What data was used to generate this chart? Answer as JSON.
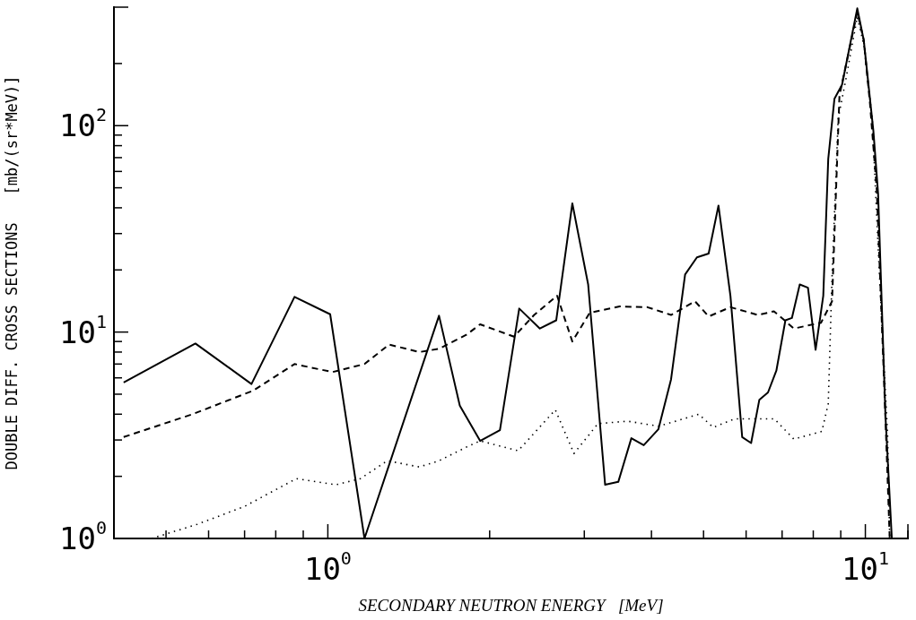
{
  "chart_data": {
    "type": "line",
    "xlabel": "SECONDARY NEUTRON ENERGY   [MeV]",
    "ylabel": "DOUBLE DIFF. CROSS SECTIONS   [mb/(sr*MeV)]",
    "log": "xy",
    "grid": false,
    "legend": false,
    "marker": "none",
    "xlim": [
      0.4,
      12
    ],
    "ylim": [
      1,
      375
    ],
    "xticks": [
      {
        "value": 0.5,
        "label": null
      },
      {
        "value": 0.6,
        "label": null
      },
      {
        "value": 0.7,
        "label": null
      },
      {
        "value": 0.8,
        "label": null
      },
      {
        "value": 0.9,
        "label": null
      },
      {
        "value": 1,
        "label": "10$^{0}$"
      },
      {
        "value": 2,
        "label": null
      },
      {
        "value": 3,
        "label": null
      },
      {
        "value": 4,
        "label": null
      },
      {
        "value": 5,
        "label": null
      },
      {
        "value": 6,
        "label": null
      },
      {
        "value": 7,
        "label": null
      },
      {
        "value": 8,
        "label": null
      },
      {
        "value": 9,
        "label": null
      },
      {
        "value": 10,
        "label": "10$^{1}$"
      },
      {
        "value": 12,
        "label": null
      }
    ],
    "yticks": [
      {
        "value": 1,
        "label": "10$^{0}$"
      },
      {
        "value": 2,
        "label": null
      },
      {
        "value": 3,
        "label": null
      },
      {
        "value": 4,
        "label": null
      },
      {
        "value": 5,
        "label": null
      },
      {
        "value": 6,
        "label": null
      },
      {
        "value": 7,
        "label": null
      },
      {
        "value": 8,
        "label": null
      },
      {
        "value": 9,
        "label": null
      },
      {
        "value": 10,
        "label": "10$^{1}$"
      },
      {
        "value": 20,
        "label": null
      },
      {
        "value": 30,
        "label": null
      },
      {
        "value": 40,
        "label": null
      },
      {
        "value": 50,
        "label": null
      },
      {
        "value": 60,
        "label": null
      },
      {
        "value": 70,
        "label": null
      },
      {
        "value": 80,
        "label": null
      },
      {
        "value": 90,
        "label": null
      },
      {
        "value": 100,
        "label": "10$^{2}$"
      },
      {
        "value": 200,
        "label": null
      }
    ],
    "series": [
      {
        "color": "#000000",
        "line_style": "solid",
        "x": [
          0.417,
          0.567,
          0.721,
          0.867,
          1.01,
          1.17,
          1.61,
          1.76,
          1.92,
          2.09,
          2.27,
          2.48,
          2.66,
          2.85,
          3.05,
          3.28,
          3.47,
          3.67,
          3.87,
          4.12,
          4.35,
          4.62,
          4.86,
          5.11,
          5.33,
          5.61,
          5.9,
          6.13,
          6.35,
          6.59,
          6.83,
          7.1,
          7.3,
          7.55,
          7.82,
          8.08,
          8.35,
          8.53,
          8.76,
          9.05,
          9.66,
          9.93,
          10.35,
          10.56,
          10.9,
          11.2
        ],
        "values": [
          5.7,
          8.8,
          5.6,
          14.8,
          12.2,
          1.0,
          12.0,
          4.4,
          2.97,
          3.35,
          13.0,
          10.4,
          11.4,
          42,
          17,
          1.82,
          1.88,
          3.06,
          2.83,
          3.38,
          5.9,
          19,
          23,
          24,
          41,
          15,
          3.1,
          2.9,
          4.7,
          5.1,
          6.5,
          11.4,
          11.7,
          17,
          16.4,
          8.2,
          15,
          69,
          135,
          158,
          370,
          260,
          94,
          47,
          3.9,
          1.0
        ]
      },
      {
        "color": "#000000",
        "line_style": "dashed",
        "x": [
          0.417,
          0.56,
          0.726,
          0.867,
          1.02,
          1.17,
          1.3,
          1.48,
          1.61,
          1.81,
          1.92,
          2.22,
          2.42,
          2.67,
          2.85,
          3.07,
          3.49,
          3.93,
          4.35,
          4.82,
          5.11,
          5.61,
          6.31,
          6.76,
          7.1,
          7.36,
          8.27,
          8.67,
          8.95,
          9.66,
          9.93,
          10.2,
          10.5,
          10.9,
          11.1
        ],
        "values": [
          3.1,
          4.0,
          5.2,
          7.0,
          6.4,
          7.0,
          8.7,
          8.0,
          8.3,
          9.7,
          10.9,
          9.5,
          12.1,
          15,
          9.0,
          12.4,
          13.3,
          13.2,
          12.1,
          14.1,
          11.9,
          13.2,
          12.1,
          12.6,
          11.3,
          10.4,
          11.1,
          14.1,
          140,
          355,
          260,
          128,
          49,
          3.8,
          1.0
        ]
      },
      {
        "color": "#000000",
        "line_style": "dotted",
        "x": [
          0.47,
          0.571,
          0.7,
          0.874,
          1.035,
          1.15,
          1.29,
          1.48,
          1.61,
          1.81,
          1.92,
          2.26,
          2.65,
          2.87,
          3.18,
          3.61,
          4.13,
          4.9,
          5.21,
          5.71,
          6.77,
          7.36,
          8.3,
          8.53,
          8.67,
          8.9,
          9.2,
          9.66,
          9.93,
          10.3,
          10.56,
          11.0,
          11.1
        ],
        "values": [
          1.0,
          1.17,
          1.43,
          1.95,
          1.82,
          1.95,
          2.38,
          2.22,
          2.38,
          2.77,
          2.97,
          2.66,
          4.2,
          2.58,
          3.6,
          3.7,
          3.5,
          4.0,
          3.45,
          3.8,
          3.8,
          3.03,
          3.3,
          4.5,
          18.5,
          108,
          168,
          336,
          248,
          108,
          26,
          3.15,
          1.0
        ]
      }
    ]
  }
}
